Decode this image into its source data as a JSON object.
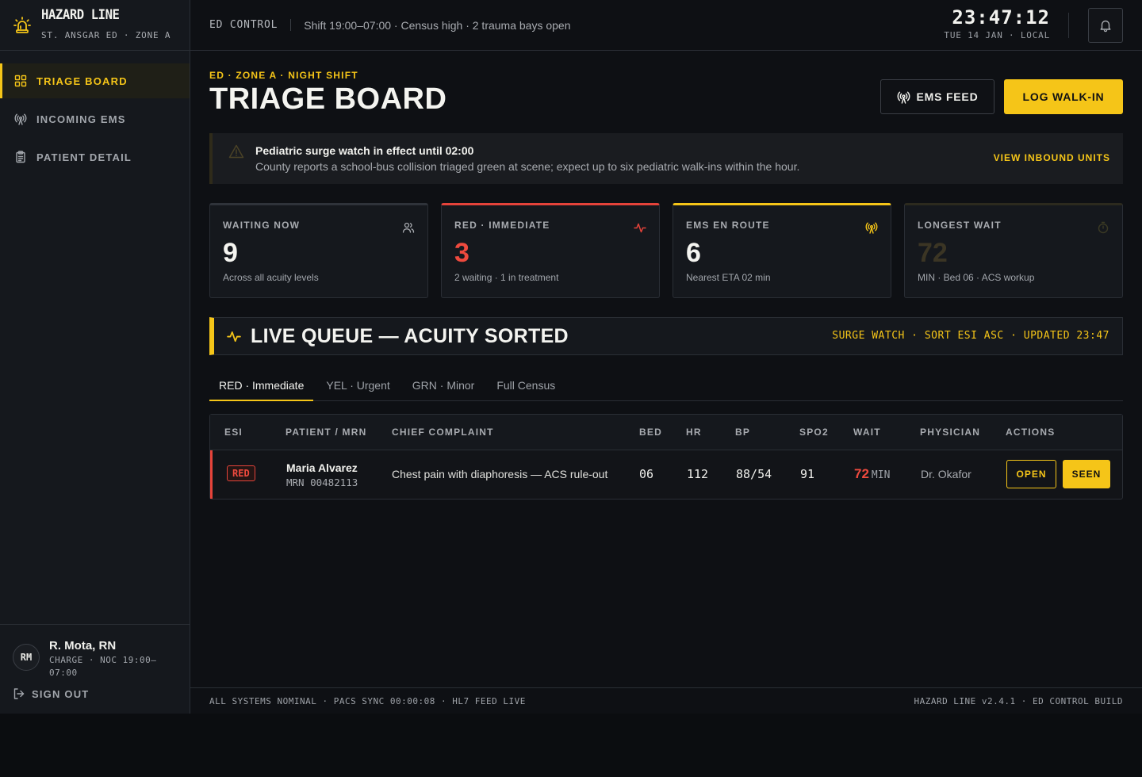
{
  "brand": {
    "title": "HAZARD LINE",
    "subtitle": "ST. ANSGAR ED · ZONE A",
    "icon": "siren-icon",
    "accent": "#f5c518"
  },
  "sidebar": {
    "items": [
      {
        "label": "TRIAGE BOARD",
        "icon": "grid-icon",
        "active": true
      },
      {
        "label": "INCOMING EMS",
        "icon": "broadcast-icon",
        "active": false
      },
      {
        "label": "PATIENT DETAIL",
        "icon": "clipboard-icon",
        "active": false
      }
    ],
    "user": {
      "initials": "RM",
      "name": "R. Mota, RN",
      "role": "CHARGE · NOC 19:00–07:00"
    },
    "signout_label": "SIGN OUT"
  },
  "topbar": {
    "control_label": "ED CONTROL",
    "shift_info": "Shift 19:00–07:00 · Census high · 2 trauma bays open",
    "clock_time": "23:47:12",
    "clock_date": "TUE 14 JAN · LOCAL"
  },
  "page": {
    "eyebrow": "ED · ZONE A · NIGHT SHIFT",
    "title": "TRIAGE BOARD",
    "ems_feed_label": "EMS FEED",
    "log_walkin_label": "LOG WALK-IN"
  },
  "alert": {
    "title": "Pediatric surge watch in effect until 02:00",
    "body": "County reports a school-bus collision triaged green at scene; expect up to six pediatric walk-ins within the hour.",
    "link_label": "VIEW INBOUND UNITS"
  },
  "stats": [
    {
      "label": "WAITING NOW",
      "value": "9",
      "sub": "Across all acuity levels",
      "icon": "users-icon"
    },
    {
      "label": "RED · IMMEDIATE",
      "value": "3",
      "sub": "2 waiting · 1 in treatment",
      "icon": "pulse-icon",
      "color": "#e5433a"
    },
    {
      "label": "EMS EN ROUTE",
      "value": "6",
      "sub": "Nearest ETA 02 min",
      "icon": "broadcast-icon",
      "color": "#f5c518"
    },
    {
      "label": "LONGEST WAIT",
      "value": "72",
      "sub": "MIN · Bed 06 · ACS workup",
      "icon": "timer-icon"
    }
  ],
  "queue": {
    "title": "LIVE QUEUE — ACUITY SORTED",
    "meta": "SURGE WATCH · SORT ESI ASC · UPDATED 23:47",
    "tabs": [
      {
        "label": "RED · Immediate",
        "active": true
      },
      {
        "label": "YEL · Urgent",
        "active": false
      },
      {
        "label": "GRN · Minor",
        "active": false
      },
      {
        "label": "Full Census",
        "active": false
      }
    ],
    "columns": [
      "ESI",
      "PATIENT / MRN",
      "CHIEF COMPLAINT",
      "BED",
      "HR",
      "BP",
      "SPO2",
      "WAIT",
      "PHYSICIAN",
      "ACTIONS"
    ],
    "rows": [
      {
        "esi": "RED",
        "name": "Maria Alvarez",
        "mrn": "MRN 00482113",
        "complaint": "Chest pain with diaphoresis — ACS rule-out",
        "bed": "06",
        "hr": "112",
        "bp": "88/54",
        "spo2": "91",
        "wait": "72",
        "wait_unit": "MIN",
        "physician": "Dr. Okafor",
        "open_label": "OPEN",
        "seen_label": "SEEN"
      }
    ]
  },
  "footer": {
    "left": "ALL SYSTEMS NOMINAL · PACS SYNC 00:00:08 · HL7 FEED LIVE",
    "right": "HAZARD LINE v2.4.1 · ED CONTROL BUILD"
  }
}
